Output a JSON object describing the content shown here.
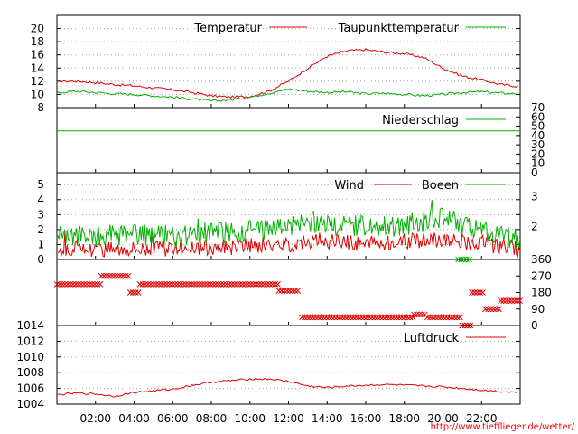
{
  "chart_data": [
    {
      "type": "line",
      "panel": "temperature",
      "ylim": [
        8,
        22
      ],
      "yticks": [
        8,
        10,
        12,
        14,
        16,
        18,
        20
      ],
      "grid": true,
      "legend": "top-right",
      "series": [
        {
          "name": "Temperatur",
          "color": "#e00000",
          "x": [
            0,
            1,
            2,
            3,
            4,
            5,
            6,
            7,
            8,
            9,
            10,
            11,
            12,
            13,
            14,
            15,
            16,
            17,
            18,
            19,
            20,
            21,
            22,
            23,
            24
          ],
          "y": [
            12,
            12,
            11.8,
            11.5,
            11.3,
            11,
            10.7,
            10.3,
            9.8,
            9.6,
            9.7,
            10.5,
            12,
            14,
            15.8,
            16.6,
            16.8,
            16.4,
            16.2,
            15.6,
            14,
            12.8,
            12.2,
            11.5,
            11.2
          ]
        },
        {
          "name": "Taupunkttemperatur",
          "color": "#00b000",
          "x": [
            0,
            1,
            2,
            3,
            4,
            5,
            6,
            7,
            8,
            9,
            10,
            11,
            12,
            13,
            14,
            15,
            16,
            17,
            18,
            19,
            20,
            21,
            22,
            23,
            24
          ],
          "y": [
            10.2,
            10.5,
            10.3,
            10.1,
            10,
            9.8,
            9.6,
            9.3,
            9,
            9.2,
            9.6,
            10.2,
            10.8,
            10.5,
            10.3,
            10.4,
            10.1,
            10.2,
            10,
            9.8,
            10,
            10.3,
            10.4,
            10.2,
            10.1
          ]
        }
      ]
    },
    {
      "type": "line",
      "panel": "precipitation",
      "ylim": [
        0,
        70
      ],
      "yticks": [
        0,
        10,
        20,
        30,
        40,
        50,
        60,
        70
      ],
      "grid": false,
      "legend": "top-right",
      "series": [
        {
          "name": "Niederschlag",
          "color": "#00b000",
          "x": [
            0,
            24
          ],
          "y": [
            45,
            45
          ]
        }
      ]
    },
    {
      "type": "line",
      "panel": "wind",
      "ylim": [
        0,
        5.8
      ],
      "yticks": [
        0,
        1,
        2,
        3,
        4,
        5
      ],
      "right_labels": [
        {
          "label": "2",
          "value": 2.2
        },
        {
          "label": "3",
          "value": 4.2
        }
      ],
      "grid": true,
      "legend": "top-right",
      "series": [
        {
          "name": "Wind",
          "color": "#e00000",
          "x": [
            0,
            2,
            4,
            6,
            8,
            10,
            12,
            13,
            14,
            16,
            18,
            20,
            22,
            24
          ],
          "y": [
            0.6,
            0.7,
            0.8,
            0.7,
            0.8,
            0.9,
            1,
            1.3,
            1.2,
            1.1,
            1.2,
            1.4,
            1,
            0.7
          ]
        },
        {
          "name": "Boeen",
          "color": "#00b000",
          "x": [
            0,
            2,
            4,
            6,
            8,
            10,
            12,
            13,
            14,
            16,
            18,
            20,
            22,
            24
          ],
          "y": [
            1.5,
            1.6,
            1.6,
            1.5,
            1.8,
            1.9,
            2.2,
            2.6,
            2.4,
            2.2,
            2.3,
            2.8,
            1.8,
            1.4
          ]
        }
      ]
    },
    {
      "type": "scatter",
      "panel": "wind_direction",
      "ylim": [
        0,
        360
      ],
      "yticks": [
        0,
        90,
        180,
        270,
        360
      ],
      "series": [
        {
          "color": "#e00000",
          "segments": [
            [
              0,
              2.3,
              225
            ],
            [
              2.3,
              3.8,
              270
            ],
            [
              3.8,
              4.3,
              180
            ],
            [
              4.3,
              11.5,
              225
            ],
            [
              11.5,
              12.6,
              190
            ],
            [
              12.7,
              18.5,
              45
            ],
            [
              18.5,
              19.2,
              60
            ],
            [
              19.2,
              21,
              45
            ],
            [
              21,
              21.5,
              0
            ],
            [
              21.5,
              22.2,
              180
            ],
            [
              22.2,
              23,
              90
            ],
            [
              23,
              24,
              135
            ]
          ]
        },
        {
          "color": "#00b000",
          "segments": [
            [
              20.8,
              21.5,
              360
            ]
          ]
        }
      ]
    },
    {
      "type": "line",
      "panel": "pressure",
      "ylim": [
        1004,
        1014
      ],
      "yticks": [
        1004,
        1006,
        1008,
        1010,
        1012,
        1014
      ],
      "grid": true,
      "legend": "top-right",
      "series": [
        {
          "name": "Luftdruck",
          "color": "#e00000",
          "x": [
            0,
            1,
            2,
            3,
            4,
            5,
            6,
            7,
            8,
            9,
            10,
            11,
            12,
            13,
            14,
            15,
            16,
            17,
            18,
            19,
            20,
            21,
            22,
            23,
            24
          ],
          "y": [
            1005.2,
            1005.4,
            1005.3,
            1005,
            1005.5,
            1005.7,
            1005.9,
            1006.4,
            1006.8,
            1007,
            1007.2,
            1007.2,
            1006.9,
            1006.3,
            1006.1,
            1006.3,
            1006.4,
            1006.5,
            1006.4,
            1006.3,
            1006.2,
            1006,
            1005.8,
            1005.6,
            1005.5
          ]
        }
      ]
    }
  ],
  "x_axis": {
    "range": [
      0,
      24
    ],
    "labels": [
      {
        "text": "02:00",
        "value": 2
      },
      {
        "text": "04:00",
        "value": 4
      },
      {
        "text": "06:00",
        "value": 6
      },
      {
        "text": "08:00",
        "value": 8
      },
      {
        "text": "10:00",
        "value": 10
      },
      {
        "text": "12:00",
        "value": 12
      },
      {
        "text": "14:00",
        "value": 14
      },
      {
        "text": "16:00",
        "value": 16
      },
      {
        "text": "18:00",
        "value": 18
      },
      {
        "text": "20:00",
        "value": 20
      },
      {
        "text": "22:00",
        "value": 22
      }
    ]
  },
  "footer": {
    "url": "http://www.tiefflieger.de/wetter/"
  }
}
